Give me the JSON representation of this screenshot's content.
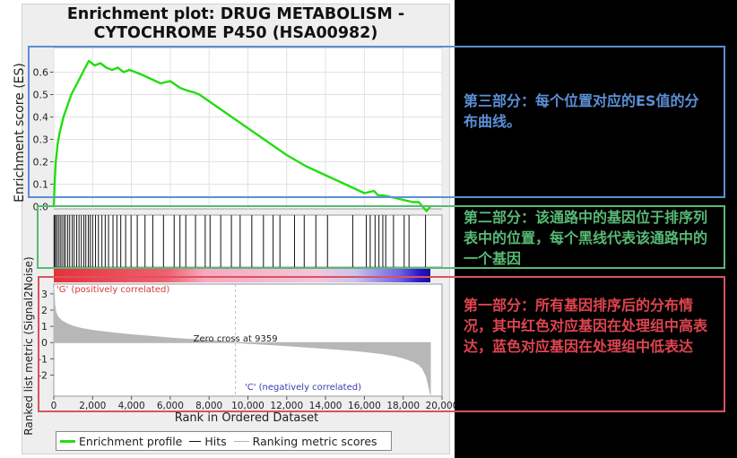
{
  "chart_data": {
    "type": "line",
    "title_lines": [
      "Enrichment plot: DRUG METABOLISM -",
      "CYTOCHROME P450 (HSA00982)"
    ],
    "xlabel": "Rank in Ordered Dataset",
    "es_ylabel": "Enrichment score (ES)",
    "metric_ylabel": "Ranked list metric (Signal2Noise)",
    "xlim": [
      0,
      20000
    ],
    "x_ticks": [
      0,
      2000,
      4000,
      6000,
      8000,
      10000,
      12000,
      14000,
      16000,
      18000,
      20000
    ],
    "x_tick_labels": [
      "0",
      "2,000",
      "4,000",
      "6,000",
      "8,000",
      "10,000",
      "12,000",
      "14,000",
      "16,000",
      "18,000",
      "20,000"
    ],
    "es_ylim": [
      -0.01,
      0.71
    ],
    "es_ticks": [
      0.0,
      0.1,
      0.2,
      0.3,
      0.4,
      0.5,
      0.6
    ],
    "es_tick_labels": [
      "0.0",
      "0.1",
      "0.2",
      "0.3",
      "0.4",
      "0.5",
      "0.6"
    ],
    "metric_ylim": [
      -3.3,
      3.6
    ],
    "metric_ticks": [
      3,
      2,
      1,
      0,
      -1,
      -2
    ],
    "metric_tick_labels": [
      "3",
      "2",
      "1",
      "0",
      "-1",
      "-2"
    ],
    "enrichment_profile": {
      "x": [
        0,
        50,
        100,
        200,
        300,
        500,
        700,
        900,
        1200,
        1500,
        1800,
        2100,
        2400,
        2700,
        3000,
        3300,
        3600,
        3900,
        4200,
        4500,
        5000,
        5500,
        6000,
        6500,
        6800,
        7200,
        7500,
        8000,
        9000,
        10000,
        11000,
        12000,
        13000,
        14000,
        15000,
        16000,
        16500,
        16700,
        17000,
        17500,
        18000,
        18500,
        18800,
        19000,
        19200,
        19300,
        19400
      ],
      "y": [
        0.0,
        0.12,
        0.2,
        0.28,
        0.33,
        0.4,
        0.45,
        0.5,
        0.55,
        0.6,
        0.65,
        0.63,
        0.64,
        0.62,
        0.61,
        0.62,
        0.6,
        0.61,
        0.6,
        0.59,
        0.57,
        0.55,
        0.56,
        0.53,
        0.52,
        0.51,
        0.5,
        0.47,
        0.41,
        0.35,
        0.29,
        0.23,
        0.18,
        0.14,
        0.1,
        0.06,
        0.07,
        0.05,
        0.05,
        0.04,
        0.03,
        0.02,
        0.02,
        0.0,
        -0.02,
        -0.01,
        0.0
      ],
      "color": "#22dd11"
    },
    "hits": [
      30,
      80,
      150,
      240,
      330,
      420,
      520,
      600,
      720,
      820,
      950,
      1050,
      1180,
      1300,
      1420,
      1550,
      1650,
      1780,
      1880,
      2000,
      2150,
      2300,
      2480,
      2650,
      2820,
      3050,
      3250,
      3450,
      3700,
      3980,
      4300,
      4700,
      5100,
      5650,
      6200,
      6500,
      6800,
      7300,
      7800,
      8050,
      8600,
      9150,
      9600,
      10200,
      10800,
      11300,
      11650,
      12400,
      12900,
      13500,
      14100,
      15400,
      16100,
      16300,
      16550,
      16750,
      16950,
      17100,
      17500,
      18050,
      18300,
      19150
    ],
    "ranking_metric": {
      "x": [
        0,
        50,
        100,
        200,
        400,
        700,
        1000,
        1500,
        2000,
        3000,
        4000,
        5000,
        6000,
        7000,
        8000,
        9000,
        9359,
        10000,
        11000,
        12000,
        13000,
        14000,
        15000,
        16000,
        17000,
        17500,
        18000,
        18500,
        18800,
        19000,
        19200,
        19300,
        19400
      ],
      "y": [
        3.4,
        2.3,
        1.9,
        1.6,
        1.35,
        1.15,
        1.0,
        0.85,
        0.75,
        0.6,
        0.48,
        0.38,
        0.28,
        0.2,
        0.13,
        0.05,
        0.0,
        -0.05,
        -0.12,
        -0.2,
        -0.28,
        -0.36,
        -0.45,
        -0.55,
        -0.7,
        -0.8,
        -0.95,
        -1.15,
        -1.35,
        -1.6,
        -2.1,
        -2.6,
        -3.2
      ],
      "color": "#b7b7b7"
    },
    "zero_cross_label": "Zero cross at 9359",
    "zero_cross_x": 9359,
    "pos_label": "'G' (positively correlated)",
    "neg_label": "'C' (negatively correlated)",
    "legend": {
      "enrichment": "Enrichment profile",
      "hits": "Hits",
      "ranking": "Ranking metric scores"
    },
    "colors": {
      "es": "#22dd11",
      "hits": "#111111",
      "metric": "#b7b7b7",
      "pos_text": "#d43a3a",
      "neg_text": "#3a3ab0"
    }
  },
  "annotations": {
    "part3": "第三部分：每个位置对应的ES值的分布曲线。",
    "part2": "第二部分：该通路中的基因位于排序列表中的位置，每个黑线代表该通路中的一个基因",
    "part1": "第一部分：所有基因排序后的分布情况，其中红色对应基因在处理组中高表达，蓝色对应基因在处理组中低表达"
  },
  "annotation_colors": {
    "part3": "#5b8fd6",
    "part2": "#57b974",
    "part1": "#e04450"
  }
}
